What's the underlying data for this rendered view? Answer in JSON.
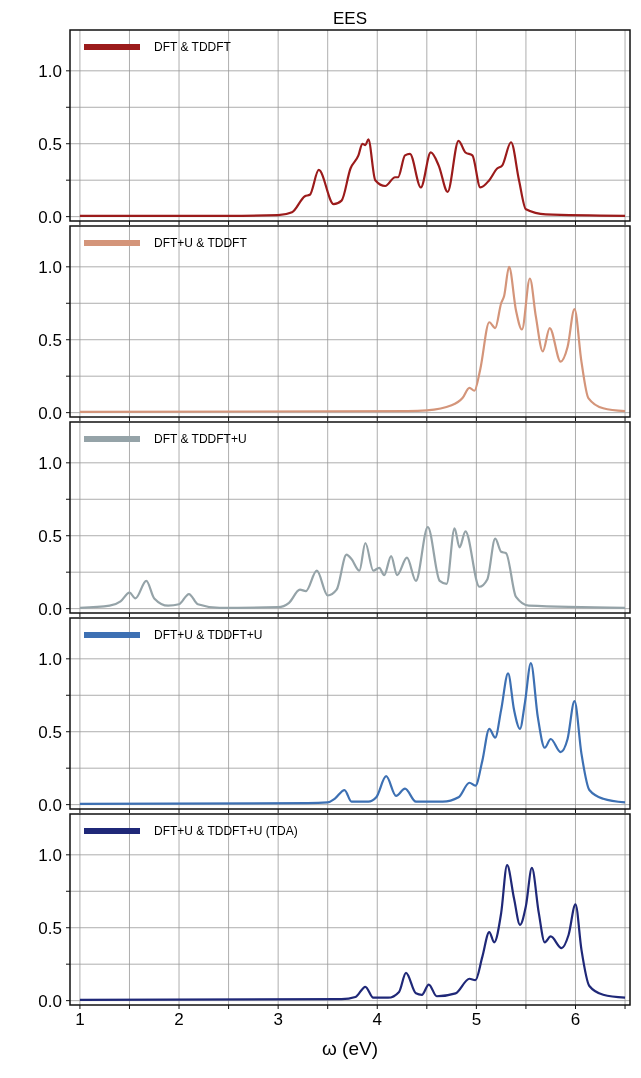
{
  "chart_data": [
    {
      "type": "line",
      "title": "EES",
      "xlim": [
        0.9,
        6.55
      ],
      "ylim": [
        -0.03,
        1.28
      ],
      "xticks": [
        1,
        {
          "value": 1.5,
          "label": null
        },
        2,
        {
          "value": 2.5,
          "label": null
        },
        3,
        {
          "value": 3.5,
          "label": null
        },
        4,
        {
          "value": 4.5,
          "label": null
        },
        5,
        {
          "value": 5.5,
          "label": null
        },
        6,
        {
          "value": 6.5,
          "label": null
        }
      ],
      "yticks": [
        {
          "value": 0,
          "label": "0.0"
        },
        {
          "value": 0.25,
          "label": null
        },
        {
          "value": 0.5,
          "label": "0.5"
        },
        {
          "value": 0.75,
          "label": null
        },
        {
          "value": 1,
          "label": "1.0"
        }
      ],
      "grid": true,
      "legend": "top left",
      "tick_labels": "y",
      "series": [
        {
          "name": "DFT & TDDFT",
          "color": "#9b1b1b",
          "x": [
            1,
            2.49,
            3,
            3.14,
            3.27,
            3.32,
            3.41,
            3.56,
            3.64,
            3.73,
            3.81,
            3.85,
            3.88,
            3.91,
            3.98,
            4.08,
            4.18,
            4.21,
            4.28,
            4.33,
            4.44,
            4.54,
            4.62,
            4.71,
            4.82,
            4.89,
            4.96,
            5.04,
            5.13,
            5.21,
            5.26,
            5.35,
            5.43,
            5.5,
            5.7,
            6.5
          ],
          "values": [
            0.005,
            0.005,
            0.01,
            0.03,
            0.14,
            0.15,
            0.32,
            0.086,
            0.11,
            0.33,
            0.42,
            0.5,
            0.49,
            0.53,
            0.25,
            0.21,
            0.27,
            0.27,
            0.42,
            0.43,
            0.2,
            0.44,
            0.35,
            0.17,
            0.52,
            0.44,
            0.42,
            0.2,
            0.25,
            0.33,
            0.35,
            0.51,
            0.25,
            0.05,
            0.015,
            0.005
          ]
        }
      ]
    },
    {
      "type": "line",
      "xlim": [
        0.9,
        6.55
      ],
      "ylim": [
        -0.03,
        1.28
      ],
      "xticks": [
        1,
        {
          "value": 1.5,
          "label": null
        },
        2,
        {
          "value": 2.5,
          "label": null
        },
        3,
        {
          "value": 3.5,
          "label": null
        },
        4,
        {
          "value": 4.5,
          "label": null
        },
        5,
        {
          "value": 5.5,
          "label": null
        },
        6,
        {
          "value": 6.5,
          "label": null
        }
      ],
      "yticks": [
        {
          "value": 0,
          "label": "0.0"
        },
        {
          "value": 0.25,
          "label": null
        },
        {
          "value": 0.5,
          "label": "0.5"
        },
        {
          "value": 0.75,
          "label": null
        },
        {
          "value": 1,
          "label": "1.0"
        }
      ],
      "grid": true,
      "legend": "top left",
      "tick_labels": "y",
      "series": [
        {
          "name": "DFT+U & TDDFT",
          "color": "#d4957a",
          "x": [
            1,
            4.31,
            4.5,
            4.75,
            4.86,
            4.93,
            4.98,
            5.04,
            5.13,
            5.19,
            5.25,
            5.28,
            5.33,
            5.4,
            5.46,
            5.54,
            5.6,
            5.67,
            5.74,
            5.85,
            5.92,
            5.99,
            6.06,
            6.13,
            6.28,
            6.5
          ],
          "values": [
            0.005,
            0.01,
            0.015,
            0.05,
            0.1,
            0.17,
            0.15,
            0.3,
            0.62,
            0.58,
            0.75,
            0.8,
            1.0,
            0.7,
            0.57,
            0.92,
            0.66,
            0.42,
            0.58,
            0.35,
            0.45,
            0.71,
            0.35,
            0.1,
            0.03,
            0.01
          ]
        }
      ]
    },
    {
      "type": "line",
      "xlim": [
        0.9,
        6.55
      ],
      "ylim": [
        -0.03,
        1.28
      ],
      "xticks": [
        1,
        {
          "value": 1.5,
          "label": null
        },
        2,
        {
          "value": 2.5,
          "label": null
        },
        3,
        {
          "value": 3.5,
          "label": null
        },
        4,
        {
          "value": 4.5,
          "label": null
        },
        5,
        {
          "value": 5.5,
          "label": null
        },
        6,
        {
          "value": 6.5,
          "label": null
        }
      ],
      "yticks": [
        {
          "value": 0,
          "label": "0.0"
        },
        {
          "value": 0.25,
          "label": null
        },
        {
          "value": 0.5,
          "label": "0.5"
        },
        {
          "value": 0.75,
          "label": null
        },
        {
          "value": 1,
          "label": "1.0"
        }
      ],
      "grid": true,
      "legend": "top left",
      "tick_labels": "y",
      "series": [
        {
          "name": "DFT & TDDFT+U",
          "color": "#95a3a8",
          "x": [
            1,
            1.3,
            1.41,
            1.5,
            1.56,
            1.67,
            1.75,
            1.89,
            2.0,
            2.1,
            2.19,
            2.41,
            3.0,
            3.11,
            3.22,
            3.28,
            3.39,
            3.5,
            3.59,
            3.69,
            3.74,
            3.82,
            3.88,
            3.96,
            4.02,
            4.07,
            4.14,
            4.2,
            4.3,
            4.39,
            4.51,
            4.63,
            4.7,
            4.78,
            4.83,
            4.89,
            5.03,
            5.11,
            5.19,
            5.25,
            5.3,
            5.4,
            5.53,
            6.5
          ],
          "values": [
            0.005,
            0.02,
            0.05,
            0.11,
            0.07,
            0.19,
            0.07,
            0.02,
            0.03,
            0.1,
            0.03,
            0.005,
            0.01,
            0.04,
            0.13,
            0.12,
            0.26,
            0.09,
            0.13,
            0.37,
            0.34,
            0.26,
            0.45,
            0.26,
            0.28,
            0.23,
            0.36,
            0.23,
            0.35,
            0.19,
            0.56,
            0.19,
            0.17,
            0.55,
            0.42,
            0.53,
            0.15,
            0.2,
            0.48,
            0.39,
            0.38,
            0.08,
            0.02,
            0.005
          ]
        }
      ]
    },
    {
      "type": "line",
      "xlim": [
        0.9,
        6.55
      ],
      "ylim": [
        -0.03,
        1.28
      ],
      "xticks": [
        1,
        {
          "value": 1.5,
          "label": null
        },
        2,
        {
          "value": 2.5,
          "label": null
        },
        3,
        {
          "value": 3.5,
          "label": null
        },
        4,
        {
          "value": 4.5,
          "label": null
        },
        5,
        {
          "value": 5.5,
          "label": null
        },
        6,
        {
          "value": 6.5,
          "label": null
        }
      ],
      "yticks": [
        {
          "value": 0,
          "label": "0.0"
        },
        {
          "value": 0.25,
          "label": null
        },
        {
          "value": 0.5,
          "label": "0.5"
        },
        {
          "value": 0.75,
          "label": null
        },
        {
          "value": 1,
          "label": "1.0"
        }
      ],
      "grid": true,
      "legend": "top left",
      "tick_labels": "y",
      "series": [
        {
          "name": "DFT+U  & TDDFT+U",
          "color": "#3d70b3",
          "x": [
            1,
            3.3,
            3.5,
            3.57,
            3.67,
            3.74,
            3.91,
            3.99,
            4.09,
            4.19,
            4.28,
            4.39,
            4.66,
            4.82,
            4.93,
            4.99,
            5.06,
            5.13,
            5.19,
            5.25,
            5.32,
            5.38,
            5.44,
            5.49,
            5.55,
            5.62,
            5.69,
            5.75,
            5.85,
            5.92,
            5.99,
            6.06,
            6.14,
            6.28,
            6.5
          ],
          "values": [
            0.005,
            0.01,
            0.015,
            0.04,
            0.1,
            0.02,
            0.02,
            0.05,
            0.195,
            0.06,
            0.11,
            0.02,
            0.02,
            0.05,
            0.15,
            0.13,
            0.3,
            0.52,
            0.46,
            0.65,
            0.9,
            0.65,
            0.52,
            0.7,
            0.97,
            0.6,
            0.39,
            0.45,
            0.36,
            0.45,
            0.71,
            0.35,
            0.1,
            0.04,
            0.015
          ]
        }
      ]
    },
    {
      "type": "line",
      "xlabel": "ω (eV)",
      "xlim": [
        0.9,
        6.55
      ],
      "ylim": [
        -0.03,
        1.28
      ],
      "xticks": [
        1,
        {
          "value": 1.5,
          "label": null
        },
        2,
        {
          "value": 2.5,
          "label": null
        },
        3,
        {
          "value": 3.5,
          "label": null
        },
        4,
        {
          "value": 4.5,
          "label": null
        },
        5,
        {
          "value": 5.5,
          "label": null
        },
        6,
        {
          "value": 6.5,
          "label": null
        }
      ],
      "yticks": [
        {
          "value": 0,
          "label": "0.0"
        },
        {
          "value": 0.25,
          "label": null
        },
        {
          "value": 0.5,
          "label": "0.5"
        },
        {
          "value": 0.75,
          "label": null
        },
        {
          "value": 1,
          "label": "1.0"
        }
      ],
      "grid": true,
      "legend": "top left",
      "series": [
        {
          "name": "DFT+U  & TDDFT+U  (TDA)",
          "color": "#1f2878",
          "x": [
            1,
            3.64,
            3.78,
            3.88,
            3.96,
            4.11,
            4.22,
            4.29,
            4.39,
            4.45,
            4.52,
            4.6,
            4.79,
            4.93,
            4.99,
            5.06,
            5.13,
            5.18,
            5.25,
            5.31,
            5.38,
            5.44,
            5.5,
            5.56,
            5.63,
            5.69,
            5.75,
            5.86,
            5.93,
            6.0,
            6.06,
            6.14,
            6.28,
            6.5
          ],
          "values": [
            0.005,
            0.01,
            0.025,
            0.095,
            0.02,
            0.02,
            0.06,
            0.19,
            0.05,
            0.04,
            0.11,
            0.03,
            0.05,
            0.15,
            0.14,
            0.3,
            0.47,
            0.4,
            0.6,
            0.93,
            0.7,
            0.52,
            0.65,
            0.91,
            0.6,
            0.4,
            0.44,
            0.36,
            0.45,
            0.66,
            0.35,
            0.1,
            0.04,
            0.02
          ]
        }
      ]
    }
  ]
}
